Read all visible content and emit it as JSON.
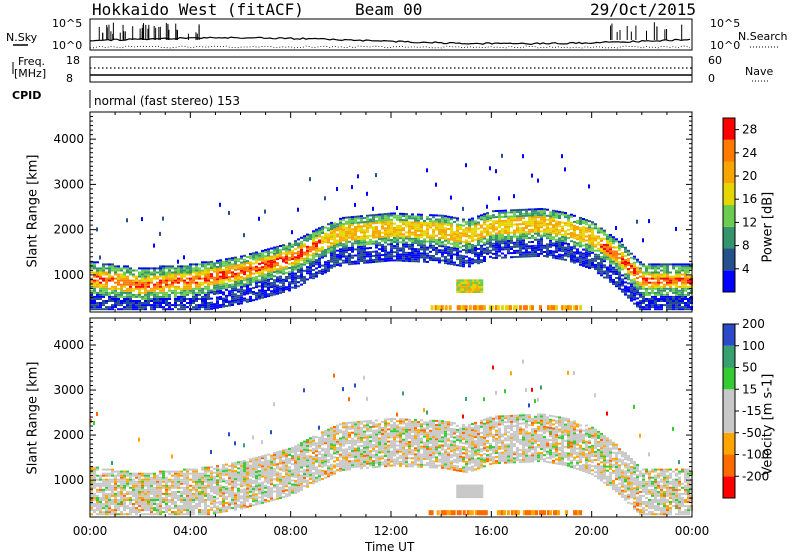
{
  "header": {
    "radar": "Hokkaido West (fitACF)",
    "beam": "Beam 00",
    "date": "29/Oct/2015"
  },
  "top_panel": {
    "left_label": "N.Sky",
    "right_label": "N.Search",
    "ticks": [
      "10^5",
      "10^0"
    ],
    "freq_label_1": "Freq.",
    "freq_label_2": "[MHz]",
    "freq_ticks": [
      "18",
      "8"
    ],
    "nave_label": "Nave",
    "nave_ticks": [
      "60",
      "0"
    ],
    "cpid_label": "CPID",
    "cpid_text": "normal (fast stereo) 153"
  },
  "colors": {
    "power": [
      "#0000ff",
      "#26508c",
      "#35946b",
      "#6bcd4f",
      "#e6d600",
      "#f7a600",
      "#ff7b00",
      "#ff0000"
    ],
    "velocity": [
      "#ff0000",
      "#ff6a00",
      "#ffa500",
      "#c8c8c8",
      "#c8c8c8",
      "#33cc33",
      "#36a06f",
      "#2b4ac8"
    ],
    "ground_scatter": "#c8c8c8"
  },
  "chart_data": [
    {
      "type": "heatmap",
      "title": "",
      "xlabel": "Time UT",
      "ylabel": "Slant Range [km]",
      "x_ticks": [
        "00:00",
        "04:00",
        "08:00",
        "12:00",
        "16:00",
        "20:00",
        "00:00"
      ],
      "y_ticks": [
        "1000",
        "2000",
        "3000",
        "4000"
      ],
      "ylim": [
        180,
        4600
      ],
      "xlim_hours": [
        0,
        24
      ],
      "colorbar": {
        "label": "Power [dB]",
        "ticks": [
          "4",
          "8",
          "12",
          "16",
          "20",
          "24",
          "28"
        ],
        "range": [
          0,
          30
        ]
      },
      "main_echo_band": {
        "time_hr": [
          0,
          2,
          4,
          6,
          8,
          9,
          10,
          12,
          14,
          15,
          16,
          18,
          19,
          20,
          21,
          22,
          24
        ],
        "range_km": [
          900,
          750,
          850,
          1050,
          1350,
          1650,
          1900,
          2000,
          1950,
          1850,
          2050,
          2100,
          2000,
          1800,
          1400,
          850,
          850
        ]
      }
    },
    {
      "type": "heatmap",
      "title": "",
      "xlabel": "Time UT",
      "ylabel": "Slant Range [km]",
      "x_ticks": [
        "00:00",
        "04:00",
        "08:00",
        "12:00",
        "16:00",
        "20:00",
        "00:00"
      ],
      "y_ticks": [
        "1000",
        "2000",
        "3000",
        "4000"
      ],
      "ylim": [
        180,
        4600
      ],
      "xlim_hours": [
        0,
        24
      ],
      "colorbar": {
        "label": "Velocity [m s-1]",
        "ticks": [
          "-200",
          "-100",
          "-50",
          "-15",
          "15",
          "50",
          "100",
          "200"
        ],
        "range": [
          -250,
          250
        ]
      },
      "main_echo_band": {
        "time_hr": [
          0,
          2,
          4,
          6,
          8,
          9,
          10,
          12,
          14,
          15,
          16,
          18,
          19,
          20,
          21,
          22,
          24
        ],
        "range_km": [
          900,
          750,
          850,
          1050,
          1350,
          1650,
          1900,
          2000,
          1950,
          1850,
          2050,
          2100,
          2000,
          1800,
          1400,
          850,
          850
        ]
      }
    }
  ]
}
